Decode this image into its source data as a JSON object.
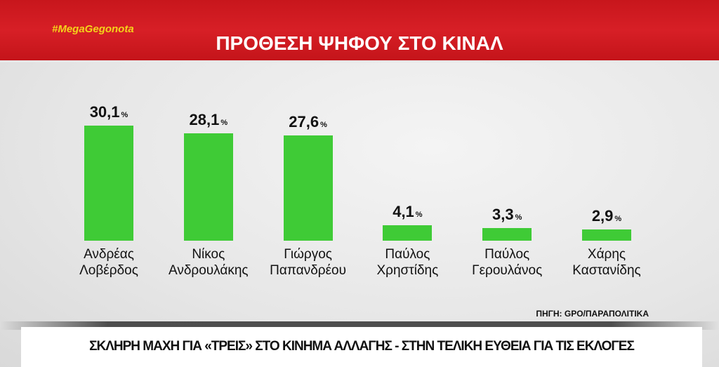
{
  "header": {
    "hashtag": "#MegaGegonota",
    "title": "ΠΡΟΘΕΣΗ ΨΗΦΟΥ ΣΤΟ ΚΙΝΑΛ"
  },
  "chart_data": {
    "type": "bar",
    "title": "ΠΡΟΘΕΣΗ ΨΗΦΟΥ ΣΤΟ ΚΙΝΑΛ",
    "categories": [
      [
        "Ανδρέας",
        "Λοβέρδος"
      ],
      [
        "Νίκος",
        "Ανδρουλάκης"
      ],
      [
        "Γιώργος",
        "Παπανδρέου"
      ],
      [
        "Παύλος",
        "Χρηστίδης"
      ],
      [
        "Παύλος",
        "Γερουλάνος"
      ],
      [
        "Χάρης",
        "Καστανίδης"
      ]
    ],
    "values": [
      30.1,
      28.1,
      27.6,
      4.1,
      3.3,
      2.9
    ],
    "labels": [
      "30,1",
      "28,1",
      "27,6",
      "4,1",
      "3,3",
      "2,9"
    ],
    "unit": "%",
    "bar_color": "#3fcb36",
    "grid": false
  },
  "source": "ΠΗΓΗ: GPO/ΠΑΡΑΠΟΛΙΤΙΚΑ",
  "ticker": "ΣΚΛΗΡΗ ΜΑΧΗ ΓΙΑ «ΤΡΕΙΣ» ΣΤΟ ΚΙΝΗΜΑ ΑΛΛΑΓΗΣ - ΣΤΗΝ ΤΕΛΙΚΗ ΕΥΘΕΙΑ ΓΙΑ ΤΙΣ ΕΚΛΟΓΕΣ"
}
